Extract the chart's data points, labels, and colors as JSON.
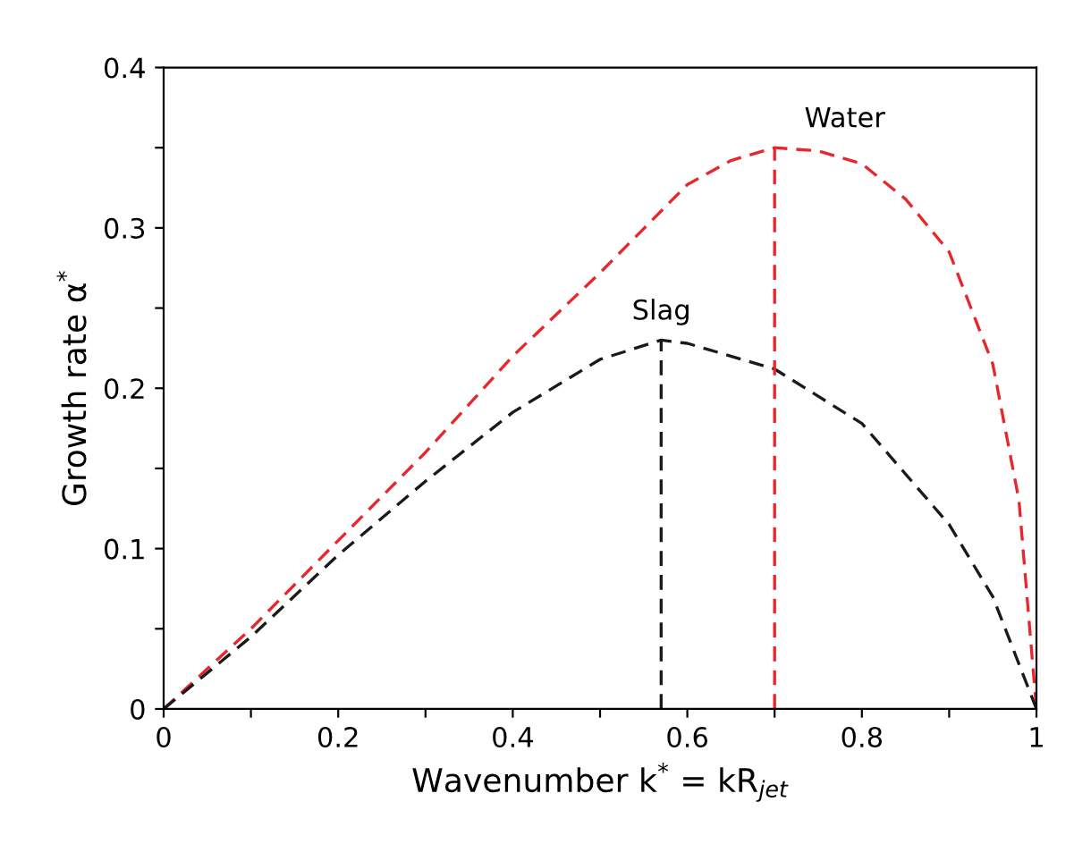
{
  "chart_data": {
    "type": "line",
    "xlabel": "Wavenumber k$^{*}$ = kR$_{jet}$",
    "ylabel": "Growth rate α$^{*}$",
    "xlim": [
      0,
      1
    ],
    "ylim": [
      0,
      0.4
    ],
    "xticks": [
      0,
      {
        "value": 0.1,
        "label": null
      },
      0.2,
      {
        "value": 0.3,
        "label": null
      },
      0.4,
      {
        "value": 0.5,
        "label": null
      },
      0.6,
      {
        "value": 0.7,
        "label": null
      },
      0.8,
      {
        "value": 0.9,
        "label": null
      },
      1
    ],
    "yticks": [
      0,
      {
        "value": 0.05,
        "label": null
      },
      0.1,
      {
        "value": 0.15,
        "label": null
      },
      0.2,
      {
        "value": 0.25,
        "label": null
      },
      0.3,
      {
        "value": 0.35,
        "label": null
      },
      0.4
    ],
    "grid": false,
    "legend": false,
    "marker": "none",
    "line_style": "dashed",
    "series": [
      {
        "name": "Water",
        "color": "#e8262b",
        "x": [
          0,
          0.1,
          0.2,
          0.3,
          0.4,
          0.5,
          0.6,
          0.65,
          0.7,
          0.75,
          0.8,
          0.85,
          0.9,
          0.95,
          0.98,
          1.0
        ],
        "values": [
          0,
          0.05,
          0.105,
          0.16,
          0.22,
          0.272,
          0.327,
          0.342,
          0.35,
          0.348,
          0.34,
          0.318,
          0.285,
          0.215,
          0.13,
          0
        ]
      },
      {
        "name": "Slag",
        "color": "#1a1a1a",
        "x": [
          0,
          0.1,
          0.2,
          0.3,
          0.4,
          0.5,
          0.57,
          0.6,
          0.7,
          0.8,
          0.9,
          0.95,
          1.0
        ],
        "values": [
          0,
          0.045,
          0.096,
          0.142,
          0.185,
          0.218,
          0.23,
          0.228,
          0.212,
          0.178,
          0.115,
          0.07,
          0
        ]
      },
      {
        "color": "#1a1a1a",
        "x": [
          0.57,
          0.57
        ],
        "values": [
          0,
          0.23
        ]
      },
      {
        "color": "#e8262b",
        "x": [
          0.7,
          0.7
        ],
        "values": [
          0,
          0.35
        ]
      }
    ]
  }
}
